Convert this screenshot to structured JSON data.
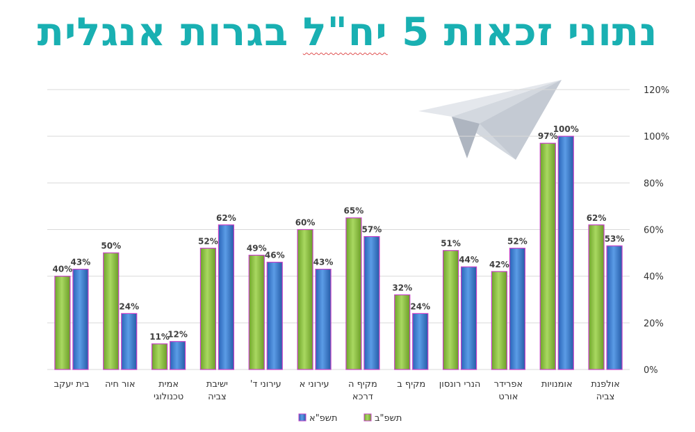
{
  "title": {
    "before": "נתוני זכאות 5",
    "underlined": "יח\"ל",
    "after": "בגרות אנגלית"
  },
  "colors": {
    "title": "#19b0b2",
    "series_green": "#8dc63f",
    "series_blue": "#3a7fd5",
    "bar_outline": "#c640c6",
    "grid": "#d9d9d9"
  },
  "decoration": {
    "icon": "paper-plane-icon"
  },
  "chart_data": {
    "type": "bar",
    "categories": [
      [
        "בית יעקב"
      ],
      [
        "אור חיה"
      ],
      [
        "אמית",
        "טכנולוגי"
      ],
      [
        "ישיבת",
        "צביה"
      ],
      [
        "עירוני ד'"
      ],
      [
        "עירוני א"
      ],
      [
        "מקיף ה",
        "דרכא"
      ],
      [
        "מקיף ב"
      ],
      [
        "הנרי רונסון"
      ],
      [
        "אפרידר",
        "אורט"
      ],
      [
        "אומנויות"
      ],
      [
        "אולפנת",
        "צביה"
      ]
    ],
    "series": [
      {
        "name": "תשפ\"ב",
        "color": "#8dc63f",
        "values": [
          40,
          50,
          11,
          52,
          49,
          60,
          65,
          32,
          51,
          42,
          97,
          62
        ]
      },
      {
        "name": "תשפ\"א",
        "color": "#3a7fd5",
        "values": [
          43,
          24,
          12,
          62,
          46,
          43,
          57,
          24,
          44,
          52,
          100,
          53
        ]
      }
    ],
    "value_suffix": "%",
    "y_ticks": [
      "0%",
      "20%",
      "40%",
      "60%",
      "80%",
      "100%",
      "120%"
    ],
    "ylim": [
      0,
      120
    ],
    "grid": true,
    "y_axis_side": "right",
    "legend_position": "bottom"
  }
}
